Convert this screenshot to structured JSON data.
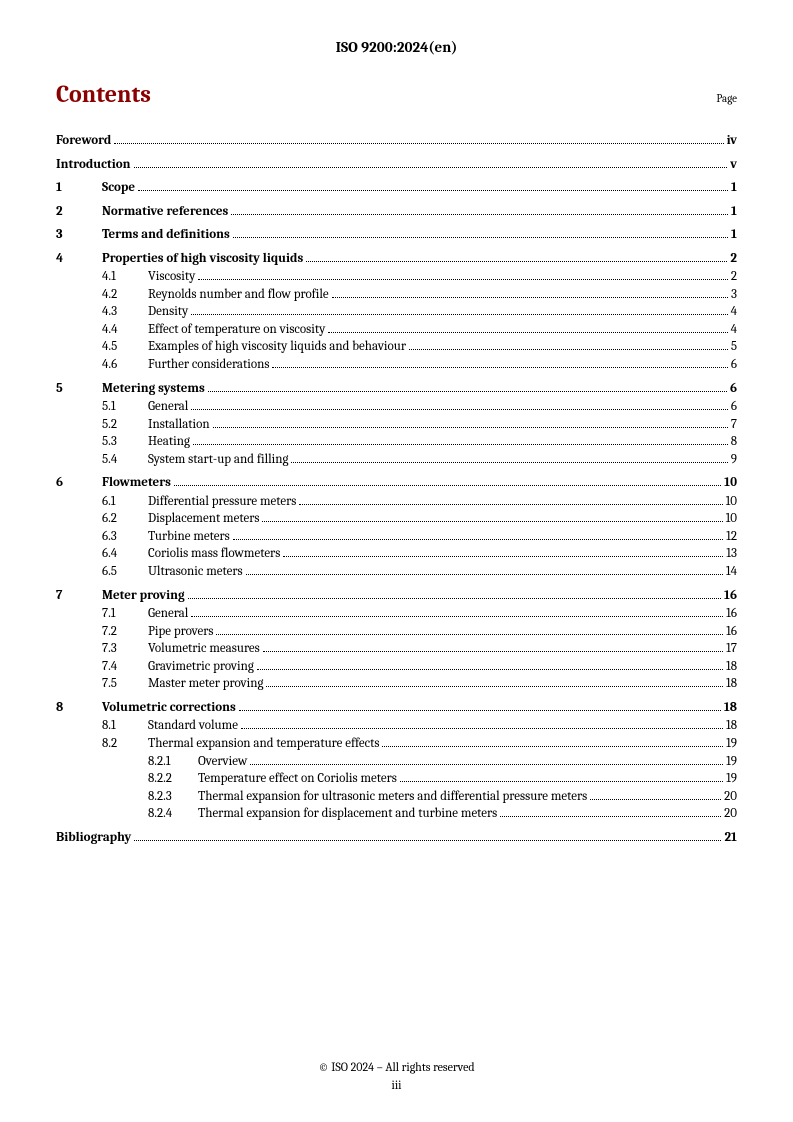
{
  "header": {
    "docId": "ISO 9200:2024(en)"
  },
  "titleRow": {
    "title": "Contents",
    "pageLabel": "Page"
  },
  "toc": [
    {
      "level": 0,
      "num": "",
      "title": "Foreword",
      "page": "iv",
      "bold": true
    },
    {
      "level": 0,
      "num": "",
      "title": "Introduction",
      "page": "v",
      "bold": true
    },
    {
      "level": 0,
      "num": "1",
      "title": "Scope",
      "page": "1",
      "bold": true
    },
    {
      "level": 0,
      "num": "2",
      "title": "Normative references",
      "page": "1",
      "bold": true
    },
    {
      "level": 0,
      "num": "3",
      "title": "Terms and definitions",
      "page": "1",
      "bold": true
    },
    {
      "level": 0,
      "num": "4",
      "title": "Properties of high viscosity liquids",
      "page": "2",
      "bold": true
    },
    {
      "level": 1,
      "num": "4.1",
      "title": "Viscosity",
      "page": "2",
      "bold": false
    },
    {
      "level": 1,
      "num": "4.2",
      "title": "Reynolds number and flow profile",
      "page": "3",
      "bold": false
    },
    {
      "level": 1,
      "num": "4.3",
      "title": "Density",
      "page": "4",
      "bold": false
    },
    {
      "level": 1,
      "num": "4.4",
      "title": "Effect of temperature on viscosity",
      "page": "4",
      "bold": false
    },
    {
      "level": 1,
      "num": "4.5",
      "title": "Examples of high viscosity liquids and behaviour",
      "page": "5",
      "bold": false
    },
    {
      "level": 1,
      "num": "4.6",
      "title": "Further considerations",
      "page": "6",
      "bold": false
    },
    {
      "level": 0,
      "num": "5",
      "title": "Metering systems",
      "page": "6",
      "bold": true
    },
    {
      "level": 1,
      "num": "5.1",
      "title": "General",
      "page": "6",
      "bold": false
    },
    {
      "level": 1,
      "num": "5.2",
      "title": "Installation",
      "page": "7",
      "bold": false
    },
    {
      "level": 1,
      "num": "5.3",
      "title": "Heating",
      "page": "8",
      "bold": false
    },
    {
      "level": 1,
      "num": "5.4",
      "title": "System start-up and filling",
      "page": "9",
      "bold": false
    },
    {
      "level": 0,
      "num": "6",
      "title": "Flowmeters",
      "page": "10",
      "bold": true
    },
    {
      "level": 1,
      "num": "6.1",
      "title": "Differential pressure meters",
      "page": "10",
      "bold": false
    },
    {
      "level": 1,
      "num": "6.2",
      "title": "Displacement meters",
      "page": "10",
      "bold": false
    },
    {
      "level": 1,
      "num": "6.3",
      "title": "Turbine meters",
      "page": "12",
      "bold": false
    },
    {
      "level": 1,
      "num": "6.4",
      "title": "Coriolis mass flowmeters",
      "page": "13",
      "bold": false
    },
    {
      "level": 1,
      "num": "6.5",
      "title": "Ultrasonic meters",
      "page": "14",
      "bold": false
    },
    {
      "level": 0,
      "num": "7",
      "title": "Meter proving",
      "page": "16",
      "bold": true
    },
    {
      "level": 1,
      "num": "7.1",
      "title": "General",
      "page": "16",
      "bold": false
    },
    {
      "level": 1,
      "num": "7.2",
      "title": "Pipe provers",
      "page": "16",
      "bold": false
    },
    {
      "level": 1,
      "num": "7.3",
      "title": "Volumetric measures",
      "page": "17",
      "bold": false
    },
    {
      "level": 1,
      "num": "7.4",
      "title": "Gravimetric proving",
      "page": "18",
      "bold": false
    },
    {
      "level": 1,
      "num": "7.5",
      "title": "Master meter proving",
      "page": "18",
      "bold": false
    },
    {
      "level": 0,
      "num": "8",
      "title": "Volumetric corrections",
      "page": "18",
      "bold": true
    },
    {
      "level": 1,
      "num": "8.1",
      "title": "Standard volume",
      "page": "18",
      "bold": false
    },
    {
      "level": 1,
      "num": "8.2",
      "title": "Thermal expansion and temperature effects",
      "page": "19",
      "bold": false
    },
    {
      "level": 2,
      "num": "8.2.1",
      "title": "Overview",
      "page": "19",
      "bold": false
    },
    {
      "level": 2,
      "num": "8.2.2",
      "title": "Temperature effect on Coriolis meters",
      "page": "19",
      "bold": false
    },
    {
      "level": 2,
      "num": "8.2.3",
      "title": "Thermal expansion for ultrasonic meters and differential pressure meters",
      "page": "20",
      "bold": false
    },
    {
      "level": 2,
      "num": "8.2.4",
      "title": "Thermal expansion for displacement and turbine meters",
      "page": "20",
      "bold": false
    },
    {
      "level": 0,
      "num": "",
      "title": "Bibliography",
      "page": "21",
      "bold": true
    }
  ],
  "footer": {
    "copyright": "© ISO 2024 – All rights reserved",
    "pageNum": "iii"
  },
  "colors": {
    "titleColor": "#8b0000",
    "textColor": "#000000",
    "background": "#ffffff"
  }
}
